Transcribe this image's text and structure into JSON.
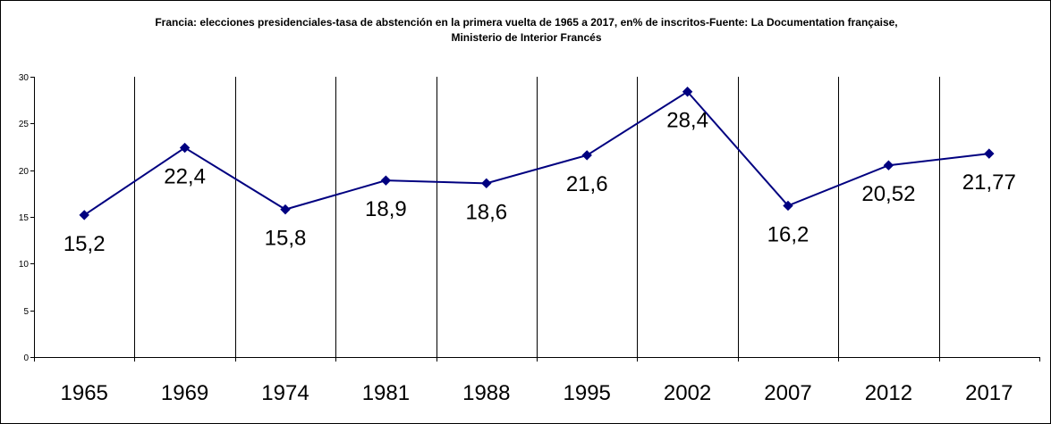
{
  "chart_data": {
    "type": "line",
    "title": "Francia: elecciones presidenciales-tasa de abstención en la primera vuelta de 1965 a 2017, en% de inscritos-Fuente: La Documentation française,",
    "subtitle": "Ministerio de Interior Francés",
    "xlabel": "",
    "ylabel": "",
    "categories": [
      "1965",
      "1969",
      "1974",
      "1981",
      "1988",
      "1995",
      "2002",
      "2007",
      "2012",
      "2017"
    ],
    "series": [
      {
        "values": [
          15.2,
          22.4,
          15.8,
          18.9,
          18.6,
          21.6,
          28.4,
          16.2,
          20.52,
          21.77
        ],
        "labels": [
          "15,2",
          "22,4",
          "15,8",
          "18,9",
          "18,6",
          "21,6",
          "28,4",
          "16,2",
          "20,52",
          "21,77"
        ],
        "color": "#000080"
      }
    ],
    "ylim": [
      0,
      30
    ],
    "yticks": [
      0,
      5,
      10,
      15,
      20,
      25,
      30
    ],
    "ytick_labels": [
      "0",
      "5",
      "10",
      "15",
      "20",
      "25",
      "30"
    ],
    "grid": "vertical lines between categories",
    "legend": "none",
    "marker": "diamond"
  }
}
